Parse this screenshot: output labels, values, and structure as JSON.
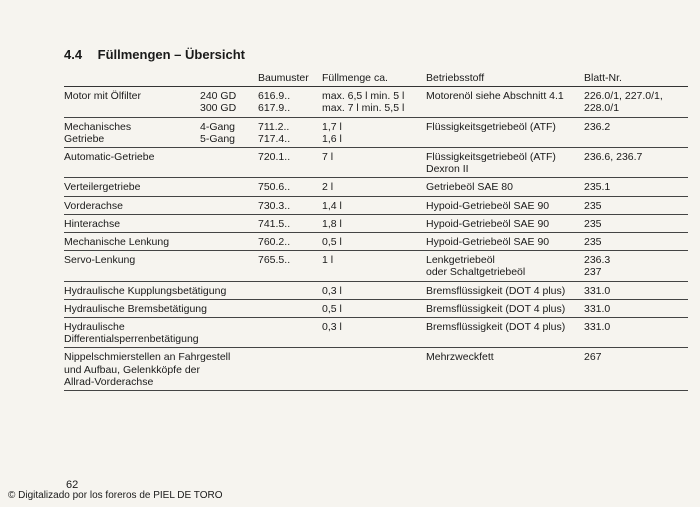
{
  "section": {
    "number": "4.4",
    "title": "Füllmengen – Übersicht"
  },
  "table": {
    "headers": [
      "",
      "",
      "Baumuster",
      "Füllmenge ca.",
      "Betriebsstoff",
      "Blatt-Nr."
    ],
    "rows": [
      {
        "name": [
          "Motor mit Ölfilter"
        ],
        "variant": [
          "240 GD",
          "300 GD"
        ],
        "baumuster": [
          "616.9..",
          "617.9.."
        ],
        "fuellmenge": [
          "max. 6,5 l  min. 5 l",
          "max. 7 l     min. 5,5 l"
        ],
        "betriebsstoff": [
          "Motorenöl siehe Abschnitt 4.1"
        ],
        "blatt": [
          "226.0/1, 227.0/1,",
          "228.0/1"
        ]
      },
      {
        "name": [
          "Mechanisches",
          "Getriebe"
        ],
        "variant": [
          "4-Gang",
          "5-Gang"
        ],
        "baumuster": [
          "711.2..",
          "717.4.."
        ],
        "fuellmenge": [
          "1,7 l",
          "1,6 l"
        ],
        "betriebsstoff": [
          "Flüssigkeitsgetriebeöl (ATF)"
        ],
        "blatt": [
          "236.2"
        ]
      },
      {
        "name": [
          "Automatic-Getriebe"
        ],
        "variant": [],
        "baumuster": [
          "720.1.."
        ],
        "fuellmenge": [
          "7 l"
        ],
        "betriebsstoff": [
          "Flüssigkeitsgetriebeöl (ATF)",
          "Dexron II"
        ],
        "blatt": [
          "236.6, 236.7"
        ]
      },
      {
        "name": [
          "Verteilergetriebe"
        ],
        "variant": [],
        "baumuster": [
          "750.6.."
        ],
        "fuellmenge": [
          "2 l"
        ],
        "betriebsstoff": [
          "Getriebeöl SAE 80"
        ],
        "blatt": [
          "235.1"
        ]
      },
      {
        "name": [
          "Vorderachse"
        ],
        "variant": [],
        "baumuster": [
          "730.3.."
        ],
        "fuellmenge": [
          "1,4 l"
        ],
        "betriebsstoff": [
          "Hypoid-Getriebeöl SAE 90"
        ],
        "blatt": [
          "235"
        ]
      },
      {
        "name": [
          "Hinterachse"
        ],
        "variant": [],
        "baumuster": [
          "741.5.."
        ],
        "fuellmenge": [
          "1,8 l"
        ],
        "betriebsstoff": [
          "Hypoid-Getriebeöl SAE 90"
        ],
        "blatt": [
          "235"
        ]
      },
      {
        "name": [
          "Mechanische Lenkung"
        ],
        "variant": [],
        "baumuster": [
          "760.2.."
        ],
        "fuellmenge": [
          "0,5 l"
        ],
        "betriebsstoff": [
          "Hypoid-Getriebeöl SAE 90"
        ],
        "blatt": [
          "235"
        ]
      },
      {
        "name": [
          "Servo-Lenkung"
        ],
        "variant": [],
        "baumuster": [
          "765.5.."
        ],
        "fuellmenge": [
          "1 l"
        ],
        "betriebsstoff": [
          "Lenkgetriebeöl",
          "oder Schaltgetriebeöl"
        ],
        "blatt": [
          "236.3",
          "237"
        ]
      },
      {
        "name": [
          "Hydraulische Kupplungsbetätigung"
        ],
        "variant": [],
        "baumuster": [],
        "fuellmenge": [
          "0,3 l"
        ],
        "betriebsstoff": [
          "Bremsflüssigkeit (DOT 4 plus)"
        ],
        "blatt": [
          "331.0"
        ]
      },
      {
        "name": [
          "Hydraulische Bremsbetätigung"
        ],
        "variant": [],
        "baumuster": [],
        "fuellmenge": [
          "0,5 l"
        ],
        "betriebsstoff": [
          "Bremsflüssigkeit (DOT 4 plus)"
        ],
        "blatt": [
          "331.0"
        ]
      },
      {
        "name": [
          "Hydraulische",
          "Differentialsperrenbetätigung"
        ],
        "variant": [],
        "baumuster": [],
        "fuellmenge": [
          "0,3 l"
        ],
        "betriebsstoff": [
          "Bremsflüssigkeit (DOT 4 plus)"
        ],
        "blatt": [
          "331.0"
        ]
      },
      {
        "name": [
          "Nippelschmierstellen an Fahrgestell",
          "und Aufbau, Gelenkköpfe der",
          "Allrad-Vorderachse"
        ],
        "variant": [],
        "baumuster": [],
        "fuellmenge": [],
        "betriebsstoff": [
          "Mehrzweckfett"
        ],
        "blatt": [
          "267"
        ]
      }
    ]
  },
  "page_number": "62",
  "footer": "© Digitalizado por los foreros de PIEL DE TORO"
}
